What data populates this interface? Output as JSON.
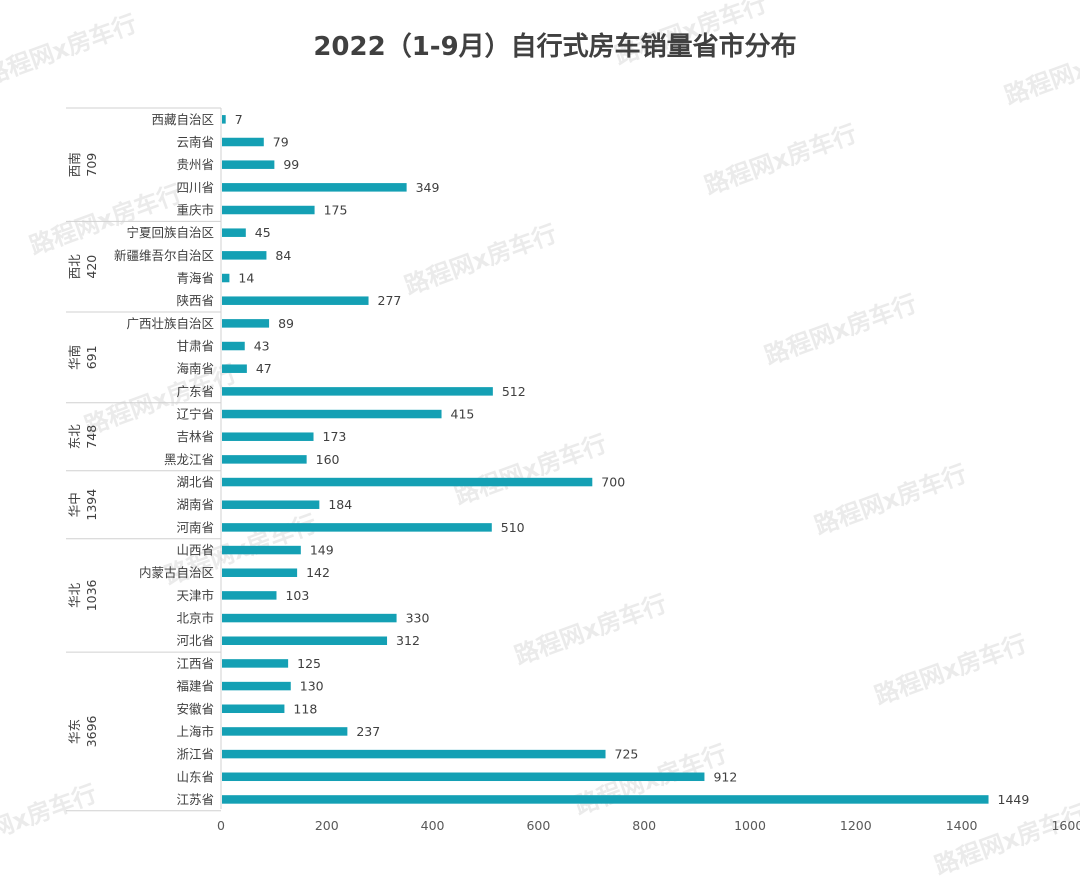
{
  "watermark_text": "路程网x房车行",
  "chart_data": {
    "type": "bar",
    "orientation": "horizontal",
    "title": "2022（1-9月）自行式房车销量省市分布",
    "xlim": [
      0,
      1600
    ],
    "xticks": [
      0,
      200,
      400,
      600,
      800,
      1000,
      1200,
      1400,
      1600
    ],
    "bar_color": "#14a0b4",
    "grid": false,
    "legend": "none",
    "groups": [
      {
        "name": "西南",
        "total": "709",
        "categories": [
          "西藏自治区",
          "云南省",
          "贵州省",
          "四川省",
          "重庆市"
        ],
        "values": [
          7,
          79,
          99,
          349,
          175
        ]
      },
      {
        "name": "西北",
        "total": "420",
        "categories": [
          "宁夏回族自治区",
          "新疆维吾尔自治区",
          "青海省",
          "陕西省"
        ],
        "values": [
          45,
          84,
          14,
          277
        ]
      },
      {
        "name": "华南",
        "total": "691",
        "categories": [
          "广西壮族自治区",
          "甘肃省",
          "海南省",
          "广东省"
        ],
        "values": [
          89,
          43,
          47,
          512
        ]
      },
      {
        "name": "东北",
        "total": "748",
        "categories": [
          "辽宁省",
          "吉林省",
          "黑龙江省"
        ],
        "values": [
          415,
          173,
          160
        ]
      },
      {
        "name": "华中",
        "total": "1394",
        "categories": [
          "湖北省",
          "湖南省",
          "河南省"
        ],
        "values": [
          700,
          184,
          510
        ]
      },
      {
        "name": "华北",
        "total": "1036",
        "categories": [
          "山西省",
          "内蒙古自治区",
          "天津市",
          "北京市",
          "河北省"
        ],
        "values": [
          149,
          142,
          103,
          330,
          312
        ]
      },
      {
        "name": "华东",
        "total": "3696",
        "categories": [
          "江西省",
          "福建省",
          "安徽省",
          "上海市",
          "浙江省",
          "山东省",
          "江苏省"
        ],
        "values": [
          125,
          130,
          118,
          237,
          725,
          912,
          1449
        ]
      }
    ]
  }
}
